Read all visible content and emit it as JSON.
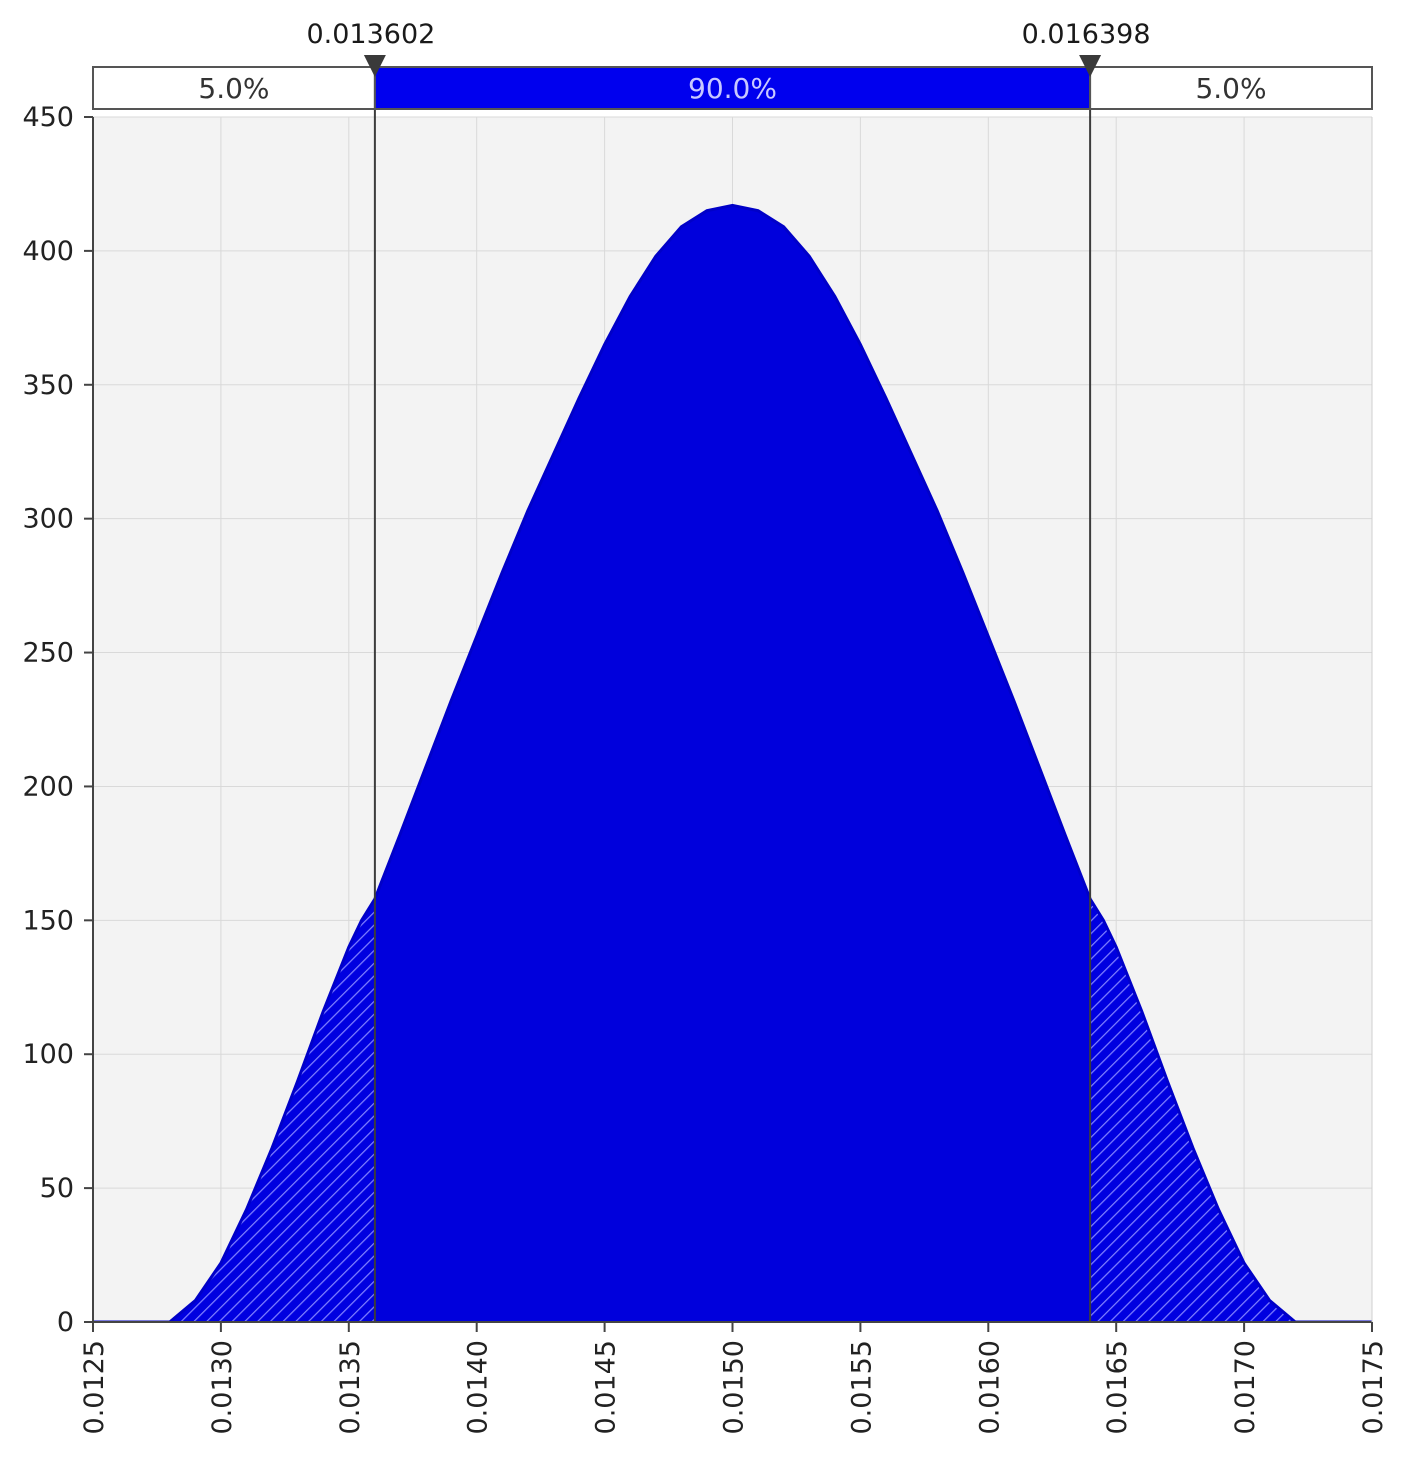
{
  "chart_data": {
    "type": "area",
    "title": "",
    "xlabel": "",
    "ylabel": "",
    "xlim": [
      0.0125,
      0.0175
    ],
    "ylim": [
      0,
      450
    ],
    "grid": true,
    "x_ticks": [
      "0.0125",
      "0.0130",
      "0.0135",
      "0.0140",
      "0.0145",
      "0.0150",
      "0.0155",
      "0.0160",
      "0.0165",
      "0.0170",
      "0.0175"
    ],
    "y_ticks": [
      "0",
      "50",
      "100",
      "150",
      "200",
      "250",
      "300",
      "350",
      "400",
      "450"
    ],
    "series": [
      {
        "x": [
          0.0125,
          0.0128,
          0.0129,
          0.013,
          0.0131,
          0.0132,
          0.0133,
          0.0134,
          0.0135,
          0.01355,
          0.013602,
          0.0137,
          0.0138,
          0.0139,
          0.014,
          0.0141,
          0.0142,
          0.0143,
          0.0144,
          0.0145,
          0.0146,
          0.0147,
          0.0148,
          0.0149,
          0.015,
          0.0151,
          0.0152,
          0.0153,
          0.0154,
          0.0155,
          0.0156,
          0.0157,
          0.0158,
          0.0159,
          0.016,
          0.0161,
          0.0162,
          0.0163,
          0.016398,
          0.01645,
          0.0165,
          0.0166,
          0.0167,
          0.0168,
          0.0169,
          0.017,
          0.0171,
          0.0172,
          0.0175
        ],
        "y": [
          0,
          0,
          8,
          22,
          42,
          65,
          90,
          116,
          140,
          150,
          158,
          182,
          207,
          232,
          256,
          280,
          303,
          324,
          345,
          365,
          383,
          398,
          409,
          415,
          417,
          415,
          409,
          398,
          383,
          365,
          345,
          324,
          303,
          280,
          256,
          232,
          207,
          182,
          158,
          150,
          140,
          116,
          90,
          65,
          42,
          22,
          8,
          0,
          0
        ]
      }
    ],
    "markers": [
      {
        "x": 0.013602,
        "label": "0.013602"
      },
      {
        "x": 0.016398,
        "label": "0.016398"
      }
    ],
    "bands": [
      {
        "label": "5.0%",
        "percent": 5.0
      },
      {
        "label": "90.0%",
        "percent": 90.0
      },
      {
        "label": "5.0%",
        "percent": 5.0
      }
    ],
    "colors": {
      "fill": "#0000e0",
      "center_fill": "#0000dc",
      "band_highlight": "#0000ee",
      "plot_background": "#f3f3f3",
      "grid": "#d9d9d9"
    }
  }
}
